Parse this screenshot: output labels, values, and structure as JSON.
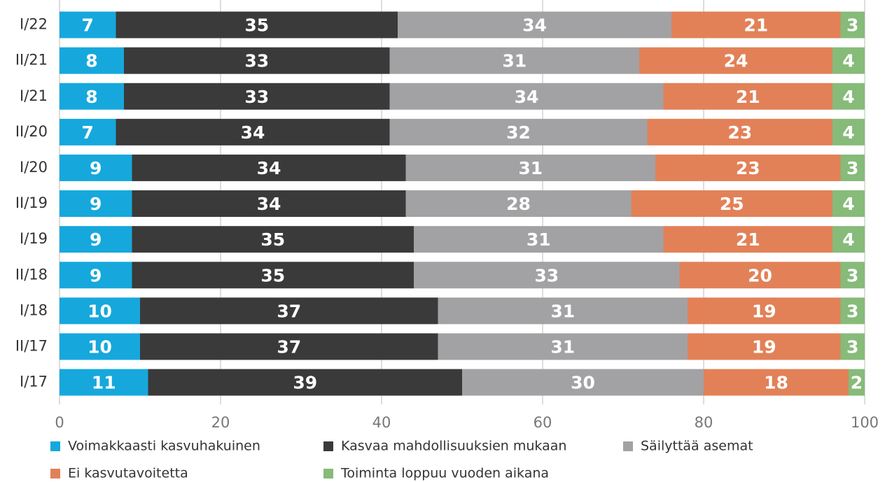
{
  "chart_data": {
    "type": "stacked_barh",
    "categories": [
      "I/22",
      "II/21",
      "I/21",
      "II/20",
      "I/20",
      "II/19",
      "I/19",
      "II/18",
      "I/18",
      "II/17",
      "I/17"
    ],
    "series": [
      {
        "name": "Voimakkaasti kasvuhakuinen",
        "color": "#16a8dc",
        "values": [
          7,
          8,
          8,
          7,
          9,
          9,
          9,
          9,
          10,
          10,
          11
        ]
      },
      {
        "name": "Kasvaa mahdollisuuksien mukaan",
        "color": "#3a3a3a",
        "values": [
          35,
          33,
          33,
          34,
          34,
          34,
          35,
          35,
          37,
          37,
          39
        ]
      },
      {
        "name": "Säilyttää asemat",
        "color": "#a2a2a4",
        "values": [
          34,
          31,
          34,
          32,
          31,
          28,
          31,
          33,
          31,
          31,
          30
        ]
      },
      {
        "name": "Ei kasvutavoitetta",
        "color": "#e28157",
        "values": [
          21,
          24,
          21,
          23,
          23,
          25,
          21,
          20,
          19,
          19,
          18
        ]
      },
      {
        "name": "Toiminta loppuu vuoden aikana",
        "color": "#86bb79",
        "values": [
          3,
          4,
          4,
          4,
          3,
          4,
          4,
          3,
          3,
          3,
          2
        ]
      }
    ],
    "xlim": [
      0,
      100
    ],
    "xticks": [
      0,
      20,
      40,
      60,
      80,
      100
    ],
    "grid": true,
    "legend": "bottom"
  }
}
